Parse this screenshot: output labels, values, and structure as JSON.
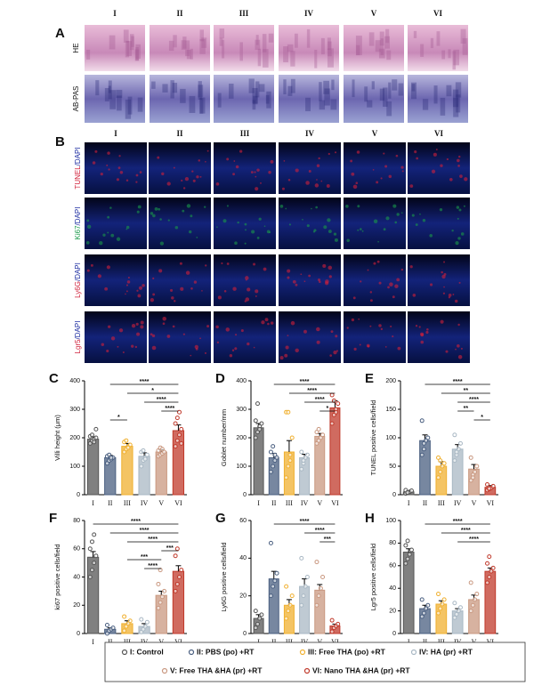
{
  "panel_a": {
    "letter": "A",
    "columns": [
      "I",
      "II",
      "III",
      "IV",
      "V",
      "VI"
    ],
    "rows": [
      "HE",
      "AB-PAS"
    ]
  },
  "panel_b": {
    "letter": "B",
    "columns": [
      "I",
      "II",
      "III",
      "IV",
      "V",
      "VI"
    ],
    "rows": [
      {
        "marker": "TUNEL",
        "stain": "/DAPI",
        "color": "#d0203a"
      },
      {
        "marker": "Ki67",
        "stain": "/DAPI",
        "color": "#1a9a4a"
      },
      {
        "marker": "Ly6G",
        "stain": "/DAPI",
        "color": "#d0203a"
      },
      {
        "marker": "Lgr5",
        "stain": "/DAPI",
        "color": "#d0203a"
      }
    ]
  },
  "chart_data": [
    {
      "type": "bar",
      "letter": "C",
      "y_label": "Villi height (μm)",
      "categories": [
        "I",
        "II",
        "III",
        "IV",
        "V",
        "VI"
      ],
      "colors": [
        "#555555",
        "#4a5f80",
        "#f0b030",
        "#a9b8c4",
        "#c99880",
        "#c0392b"
      ],
      "values": [
        195,
        130,
        170,
        135,
        150,
        225
      ],
      "errors": [
        8,
        8,
        10,
        12,
        8,
        20
      ],
      "points": [
        [
          180,
          190,
          195,
          200,
          205,
          210,
          185,
          230
        ],
        [
          110,
          120,
          125,
          130,
          135,
          140,
          130
        ],
        [
          150,
          160,
          170,
          175,
          185,
          190,
          165
        ],
        [
          100,
          120,
          130,
          140,
          150,
          155,
          125
        ],
        [
          135,
          140,
          145,
          150,
          155,
          165,
          160
        ],
        [
          170,
          190,
          210,
          230,
          250,
          270,
          290,
          180
        ]
      ],
      "ylim": [
        0,
        400
      ],
      "yticks": [
        0,
        100,
        200,
        300,
        400
      ],
      "significance": [
        {
          "from": "II",
          "to": "VI",
          "label": "****"
        },
        {
          "from": "III",
          "to": "VI",
          "label": "*"
        },
        {
          "from": "IV",
          "to": "VI",
          "label": "****"
        },
        {
          "from": "V",
          "to": "VI",
          "label": "****"
        },
        {
          "from": "II",
          "to": "III",
          "label": "*"
        }
      ]
    },
    {
      "type": "bar",
      "letter": "D",
      "y_label": "Goblet number/mm",
      "categories": [
        "I",
        "II",
        "III",
        "IV",
        "V",
        "VI"
      ],
      "colors": [
        "#555555",
        "#4a5f80",
        "#f0b030",
        "#a9b8c4",
        "#c99880",
        "#c0392b"
      ],
      "values": [
        235,
        130,
        150,
        130,
        205,
        305
      ],
      "errors": [
        15,
        15,
        40,
        12,
        10,
        25
      ],
      "points": [
        [
          200,
          220,
          240,
          250,
          260,
          320,
          230
        ],
        [
          80,
          100,
          120,
          130,
          150,
          170,
          140
        ],
        [
          60,
          100,
          140,
          200,
          290,
          290,
          120
        ],
        [
          90,
          110,
          130,
          140,
          150,
          120
        ],
        [
          180,
          190,
          200,
          210,
          220,
          230
        ],
        [
          250,
          280,
          300,
          320,
          350,
          330,
          290
        ]
      ],
      "ylim": [
        0,
        400
      ],
      "yticks": [
        0,
        100,
        200,
        300,
        400
      ],
      "significance": [
        {
          "from": "II",
          "to": "VI",
          "label": "****"
        },
        {
          "from": "III",
          "to": "VI",
          "label": "****"
        },
        {
          "from": "IV",
          "to": "VI",
          "label": "****"
        },
        {
          "from": "V",
          "to": "VI",
          "label": "*"
        }
      ]
    },
    {
      "type": "bar",
      "letter": "E",
      "y_label": "TUNEL positive cells/field",
      "categories": [
        "I",
        "II",
        "III",
        "IV",
        "V",
        "VI"
      ],
      "colors": [
        "#555555",
        "#4a5f80",
        "#f0b030",
        "#a9b8c4",
        "#c99880",
        "#c0392b"
      ],
      "values": [
        5,
        95,
        50,
        80,
        45,
        13
      ],
      "errors": [
        2,
        10,
        8,
        8,
        8,
        3
      ],
      "points": [
        [
          2,
          3,
          5,
          7,
          8,
          4
        ],
        [
          70,
          80,
          95,
          100,
          130,
          90
        ],
        [
          30,
          40,
          50,
          55,
          65,
          60
        ],
        [
          60,
          70,
          80,
          90,
          105,
          75
        ],
        [
          25,
          35,
          40,
          50,
          65,
          30
        ],
        [
          8,
          10,
          12,
          15,
          18,
          11
        ]
      ],
      "ylim": [
        0,
        200
      ],
      "yticks": [
        0,
        50,
        100,
        150,
        200
      ],
      "significance": [
        {
          "from": "II",
          "to": "VI",
          "label": "****"
        },
        {
          "from": "III",
          "to": "VI",
          "label": "**"
        },
        {
          "from": "IV",
          "to": "VI",
          "label": "****"
        },
        {
          "from": "IV",
          "to": "V",
          "label": "**"
        },
        {
          "from": "V",
          "to": "VI",
          "label": "*"
        }
      ]
    },
    {
      "type": "bar",
      "letter": "F",
      "y_label": "ki67 positive cells/field",
      "categories": [
        "I",
        "II",
        "III",
        "IV",
        "V",
        "VI"
      ],
      "colors": [
        "#555555",
        "#4a5f80",
        "#f0b030",
        "#a9b8c4",
        "#c99880",
        "#c0392b"
      ],
      "values": [
        54,
        3,
        7,
        5,
        27,
        44
      ],
      "errors": [
        4,
        1,
        2,
        2,
        3,
        4
      ],
      "points": [
        [
          40,
          45,
          50,
          55,
          60,
          65,
          70
        ],
        [
          0,
          2,
          3,
          4,
          6
        ],
        [
          2,
          5,
          7,
          9,
          12
        ],
        [
          1,
          3,
          5,
          8,
          10
        ],
        [
          18,
          22,
          26,
          30,
          35,
          45
        ],
        [
          30,
          35,
          40,
          45,
          55,
          60
        ]
      ],
      "ylim": [
        0,
        80
      ],
      "yticks": [
        0,
        20,
        40,
        60,
        80
      ],
      "significance": [
        {
          "from": "I",
          "to": "VI",
          "label": "****"
        },
        {
          "from": "II",
          "to": "VI",
          "label": "****"
        },
        {
          "from": "III",
          "to": "VI",
          "label": "****"
        },
        {
          "from": "V",
          "to": "VI",
          "label": "***"
        },
        {
          "from": "III",
          "to": "V",
          "label": "***"
        },
        {
          "from": "IV",
          "to": "V",
          "label": "****"
        }
      ]
    },
    {
      "type": "bar",
      "letter": "G",
      "y_label": "Ly6G positive cells/field",
      "categories": [
        "I",
        "II",
        "III",
        "IV",
        "V",
        "VI"
      ],
      "colors": [
        "#555555",
        "#4a5f80",
        "#f0b030",
        "#a9b8c4",
        "#c99880",
        "#c0392b"
      ],
      "values": [
        8,
        29,
        15,
        25,
        23,
        4
      ],
      "errors": [
        2,
        4,
        3,
        4,
        3,
        1
      ],
      "points": [
        [
          3,
          5,
          8,
          10,
          12
        ],
        [
          20,
          25,
          28,
          32,
          48
        ],
        [
          8,
          12,
          15,
          20,
          25
        ],
        [
          15,
          20,
          25,
          30,
          40
        ],
        [
          15,
          20,
          24,
          30,
          38
        ],
        [
          1,
          3,
          4,
          5,
          7
        ]
      ],
      "ylim": [
        0,
        60
      ],
      "yticks": [
        0,
        20,
        40,
        60
      ],
      "significance": [
        {
          "from": "II",
          "to": "VI",
          "label": "****"
        },
        {
          "from": "IV",
          "to": "VI",
          "label": "****"
        },
        {
          "from": "V",
          "to": "VI",
          "label": "***"
        }
      ]
    },
    {
      "type": "bar",
      "letter": "H",
      "y_label": "Lgr5 positive cells/field",
      "categories": [
        "I",
        "II",
        "III",
        "IV",
        "V",
        "VI"
      ],
      "colors": [
        "#555555",
        "#4a5f80",
        "#f0b030",
        "#a9b8c4",
        "#c99880",
        "#c0392b"
      ],
      "values": [
        72,
        22,
        26,
        20,
        30,
        55
      ],
      "errors": [
        3,
        3,
        3,
        2,
        4,
        3
      ],
      "points": [
        [
          62,
          66,
          70,
          74,
          78,
          82
        ],
        [
          15,
          18,
          22,
          25,
          30
        ],
        [
          18,
          22,
          26,
          30,
          35
        ],
        [
          14,
          17,
          20,
          23,
          27
        ],
        [
          20,
          25,
          30,
          35,
          45
        ],
        [
          45,
          50,
          55,
          58,
          62,
          68
        ]
      ],
      "ylim": [
        0,
        100
      ],
      "yticks": [
        0,
        20,
        40,
        60,
        80,
        100
      ],
      "significance": [
        {
          "from": "II",
          "to": "VI",
          "label": "****"
        },
        {
          "from": "III",
          "to": "VI",
          "label": "****"
        },
        {
          "from": "IV",
          "to": "VI",
          "label": "****"
        }
      ]
    }
  ],
  "legend": [
    {
      "name": "I: Control",
      "color": "#555555"
    },
    {
      "name": "II: PBS (po) +RT",
      "color": "#4a5f80"
    },
    {
      "name": "III: Free THA (po) +RT",
      "color": "#f0b030"
    },
    {
      "name": "IV: HA (pr) +RT",
      "color": "#a9b8c4"
    },
    {
      "name": "V: Free THA &HA (pr) +RT",
      "color": "#c99880"
    },
    {
      "name": "VI: Nano THA &HA (pr) +RT",
      "color": "#c0392b"
    }
  ]
}
